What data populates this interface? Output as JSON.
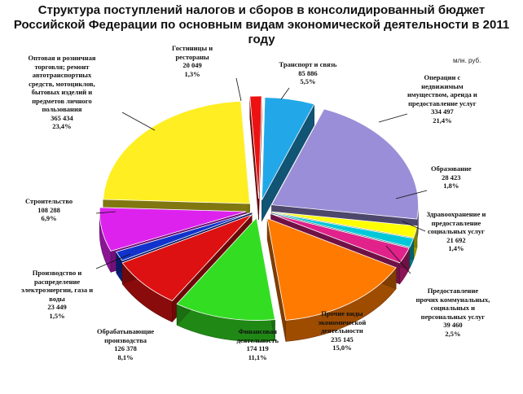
{
  "chart_data": {
    "type": "pie",
    "title_line1": "Структура поступлений налогов и сборов в консолидированный бюджет",
    "title_line2": "Российской Федерации по основным видам экономической деятельности в 2011 году",
    "unit": "млн. руб.",
    "slices": [
      {
        "label": [
          "Транспорт и связь"
        ],
        "value": 85886,
        "value_text": "85 886",
        "pct": "5,5%",
        "color": "#22a8e8"
      },
      {
        "label": [
          "Операции с",
          "недвижимым",
          "имуществом, аренда и",
          "предоставление услуг"
        ],
        "value": 334497,
        "value_text": "334 497",
        "pct": "21,4%",
        "color": "#9b8ed8"
      },
      {
        "label": [
          "Образование"
        ],
        "value": 28423,
        "value_text": "28 423",
        "pct": "1,8%",
        "color": "#ffff00"
      },
      {
        "label": [
          "Здравоохранение и",
          "предоставление",
          "социальных услуг"
        ],
        "value": 21692,
        "value_text": "21 692",
        "pct": "1,4%",
        "color": "#00c8d8"
      },
      {
        "label": [
          "Предоставление",
          "прочих коммунальных,",
          "социальных и",
          "персональных услуг"
        ],
        "value": 39460,
        "value_text": "39 460",
        "pct": "2,5%",
        "color": "#e0228a"
      },
      {
        "label": [
          "Прочие виды",
          "экономической",
          "деятельности"
        ],
        "value": 235145,
        "value_text": "235 145",
        "pct": "15,0%",
        "color": "#ff7a00"
      },
      {
        "label": [
          "Финансовая",
          "деятельность"
        ],
        "value": 174119,
        "value_text": "174 119",
        "pct": "11,1%",
        "color": "#33dd22"
      },
      {
        "label": [
          "Обрабатывающие",
          "производства"
        ],
        "value": 126378,
        "value_text": "126 378",
        "pct": "8,1%",
        "color": "#dd1111"
      },
      {
        "label": [
          "Производство и",
          "распределение",
          "электроэнергии, газа и",
          "воды"
        ],
        "value": 23449,
        "value_text": "23 449",
        "pct": "1,5%",
        "color": "#1133cc"
      },
      {
        "label": [
          "Строительство"
        ],
        "value": 108288,
        "value_text": "108 288",
        "pct": "6,9%",
        "color": "#dd22ee"
      },
      {
        "label": [
          "Оптовая и розничная",
          "торговля; ремонт",
          "автотранспортных",
          "средств, мотоциклов,",
          "бытовых изделий и",
          "предметов личного",
          "пользования"
        ],
        "value": 365434,
        "value_text": "365 434",
        "pct": "23,4%",
        "color": "#ffee22"
      },
      {
        "label": [
          "Гостиницы и",
          "рестораны"
        ],
        "value": 20049,
        "value_text": "20 049",
        "pct": "1,3%",
        "color": "#ee1111"
      }
    ]
  }
}
